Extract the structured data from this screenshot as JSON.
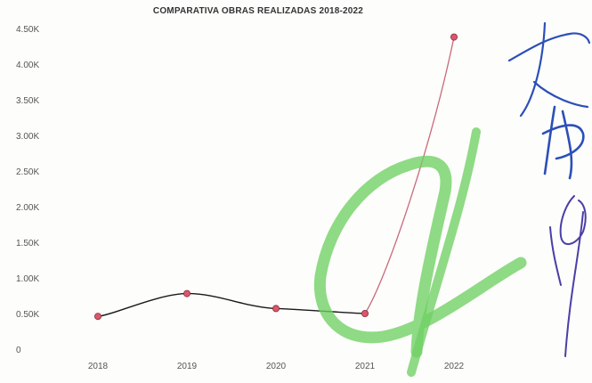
{
  "chart_data": {
    "type": "line",
    "title": "COMPARATIVA OBRAS REALIZADAS 2018-2022",
    "xlabel": "",
    "ylabel": "",
    "categories": [
      "2018",
      "2019",
      "2020",
      "2021",
      "2022"
    ],
    "y_ticks": [
      "0",
      "0.50K",
      "1.00K",
      "1.50K",
      "2.00K",
      "2.50K",
      "3.00K",
      "3.50K",
      "4.00K",
      "4.50K"
    ],
    "ylim": [
      0,
      4500
    ],
    "grid": false,
    "legend": "none",
    "series": [
      {
        "values": [
          460,
          780,
          570,
          500,
          4380
        ]
      }
    ],
    "colors": {
      "line_main": "#1a1a1a",
      "line_last": "#c96a7a",
      "marker": "#d9576b",
      "marker_edge": "#8a2a3a"
    }
  },
  "annotations": {
    "handwriting_green": "#6fcf64",
    "handwriting_blue": "#2c4fb8",
    "handwriting_purple": "#4a3fa8"
  }
}
